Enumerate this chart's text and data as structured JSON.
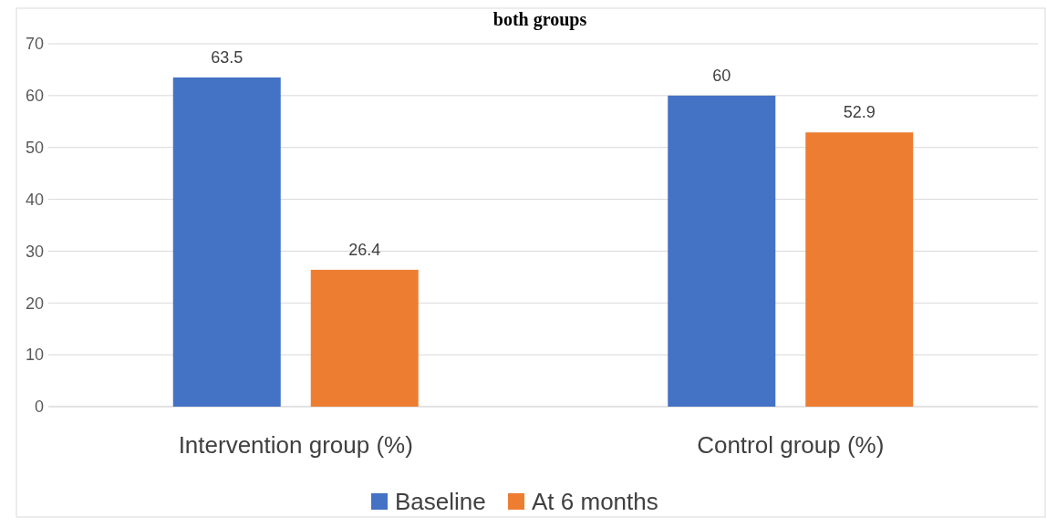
{
  "chart_data": {
    "type": "bar",
    "title": "both groups",
    "categories": [
      "Intervention group (%)",
      "Control group (%)"
    ],
    "series": [
      {
        "name": "Baseline",
        "color": "#4472c4",
        "values": [
          63.5,
          60
        ]
      },
      {
        "name": "At 6 months",
        "color": "#ed7d31",
        "values": [
          26.4,
          52.9
        ]
      }
    ],
    "ylim": [
      0,
      70
    ],
    "yticks": [
      0,
      10,
      20,
      30,
      40,
      50,
      60,
      70
    ],
    "grid": "y",
    "legend": "bottom",
    "data_labels": true
  }
}
